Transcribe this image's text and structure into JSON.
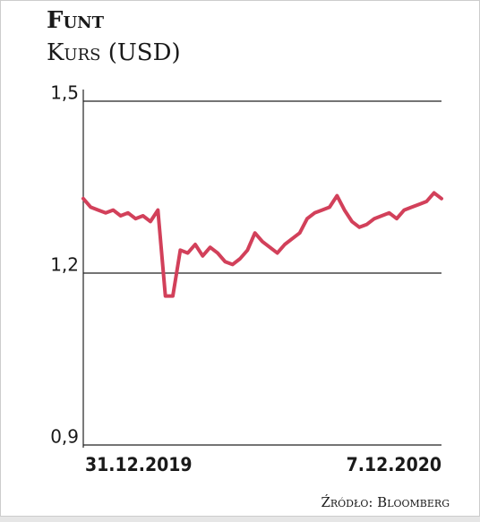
{
  "chart_data": {
    "type": "line",
    "title": "Funt",
    "subtitle": "Kurs (USD)",
    "source": "Źródło: Bloomberg",
    "categories": [
      "31.12.2019",
      null,
      null,
      null,
      null,
      null,
      null,
      null,
      null,
      null,
      null,
      null,
      null,
      null,
      null,
      null,
      null,
      null,
      null,
      null,
      null,
      null,
      null,
      null,
      null,
      null,
      null,
      null,
      null,
      null,
      null,
      null,
      null,
      null,
      null,
      null,
      null,
      null,
      null,
      null,
      null,
      null,
      null,
      null,
      null,
      null,
      null,
      null,
      "7.12.2020"
    ],
    "values": [
      1.33,
      1.315,
      1.31,
      1.305,
      1.31,
      1.3,
      1.305,
      1.295,
      1.3,
      1.29,
      1.31,
      1.16,
      1.16,
      1.24,
      1.235,
      1.25,
      1.23,
      1.245,
      1.235,
      1.22,
      1.215,
      1.225,
      1.24,
      1.27,
      1.255,
      1.245,
      1.235,
      1.25,
      1.26,
      1.27,
      1.295,
      1.305,
      1.31,
      1.315,
      1.335,
      1.31,
      1.29,
      1.28,
      1.285,
      1.295,
      1.3,
      1.305,
      1.295,
      1.31,
      1.315,
      1.32,
      1.325,
      1.34,
      1.33
    ],
    "color": "#d2405a",
    "ylim": [
      0.9,
      1.5
    ],
    "yticks": [
      {
        "value": 0.9,
        "label": "0,9"
      },
      {
        "value": 1.2,
        "label": "1,2"
      },
      {
        "value": 1.5,
        "label": "1,5"
      }
    ],
    "grid": true
  }
}
